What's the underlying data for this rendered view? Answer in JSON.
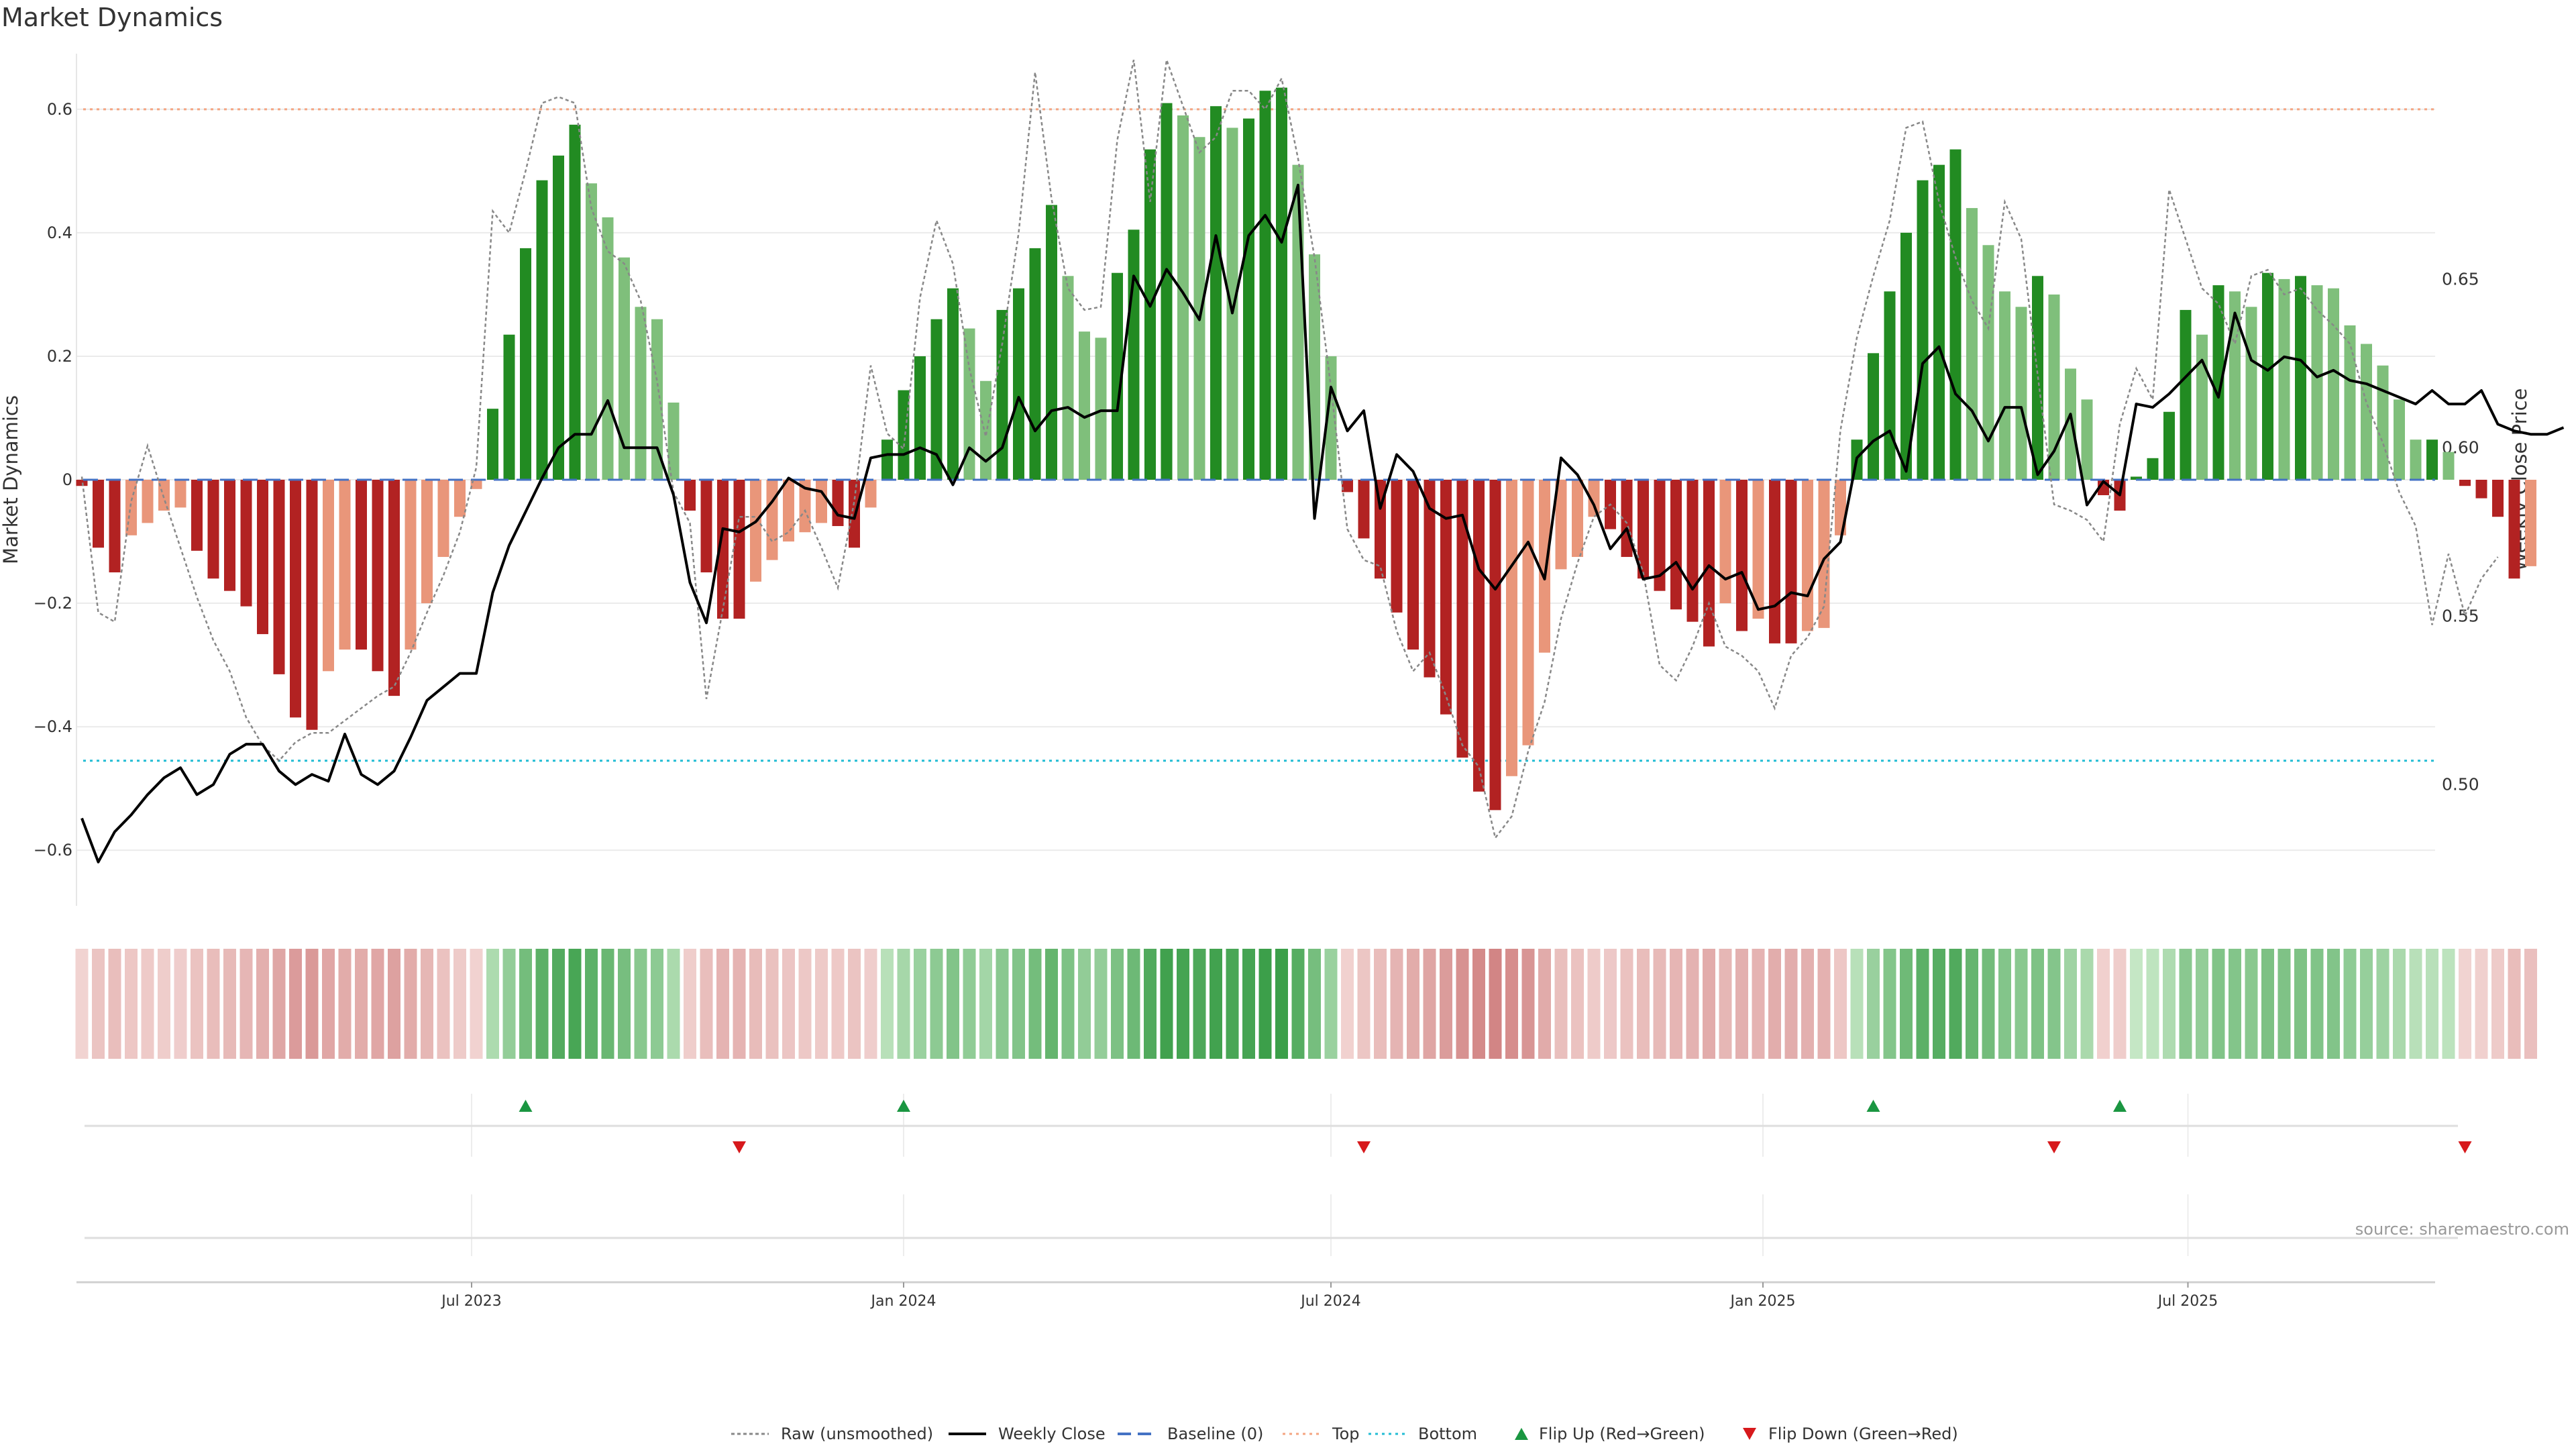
{
  "title": "Market Dynamics",
  "source": "source: sharemaestro.com",
  "colors": {
    "strong_green": "#228b22",
    "light_green": "#7fbf7b",
    "strong_red": "#b22222",
    "light_red": "#e9967a",
    "price": "#000000",
    "raw": "#888888",
    "baseline": "#4472c4",
    "top": "#f4a582",
    "bottom": "#22bcd4",
    "flip_up": "#1a9641",
    "flip_down": "#d7191c"
  },
  "chart_data": {
    "type": "bar",
    "title": "Market Dynamics",
    "ylabel_left": "Market Dynamics",
    "ylabel_right": "Weekly Close Price",
    "ylim_left": [
      -0.69,
      0.69
    ],
    "ylim_right": [
      0.464,
      0.717
    ],
    "yticks_left": [
      -0.6,
      -0.4,
      -0.2,
      0,
      0.2,
      0.4,
      0.6
    ],
    "yticks_left_labels": [
      "−0.6",
      "−0.4",
      "−0.2",
      "0",
      "0.2",
      "0.4",
      "0.6"
    ],
    "yticks_right": [
      0.5,
      0.55,
      0.6,
      0.65
    ],
    "yticks_right_labels": [
      "0.50",
      "0.55",
      "0.60",
      "0.65"
    ],
    "x_axis": {
      "start": "2023-01-16",
      "interval_days": 7,
      "ticks": [
        "2023-07-01",
        "2024-01-01",
        "2024-07-01",
        "2025-01-01",
        "2025-07-01"
      ],
      "tick_labels": [
        "Jul 2023",
        "Jan 2024",
        "Jul 2024",
        "Jan 2025",
        "Jul 2025"
      ]
    },
    "top_threshold": 0.6,
    "bottom_threshold": -0.455,
    "baseline": 0,
    "dynamics": [
      -0.01,
      -0.11,
      -0.15,
      -0.09,
      -0.07,
      -0.05,
      -0.045,
      -0.115,
      -0.16,
      -0.18,
      -0.205,
      -0.25,
      -0.315,
      -0.385,
      -0.405,
      -0.31,
      -0.275,
      -0.275,
      -0.31,
      -0.35,
      -0.275,
      -0.2,
      -0.125,
      -0.06,
      -0.015,
      0.115,
      0.235,
      0.375,
      0.485,
      0.525,
      0.575,
      0.48,
      0.425,
      0.36,
      0.28,
      0.26,
      0.125,
      -0.05,
      -0.15,
      -0.225,
      -0.225,
      -0.165,
      -0.13,
      -0.1,
      -0.085,
      -0.07,
      -0.075,
      -0.11,
      -0.045,
      0.065,
      0.145,
      0.2,
      0.26,
      0.31,
      0.245,
      0.16,
      0.275,
      0.31,
      0.375,
      0.445,
      0.33,
      0.24,
      0.23,
      0.335,
      0.405,
      0.535,
      0.61,
      0.59,
      0.555,
      0.605,
      0.57,
      0.585,
      0.63,
      0.635,
      0.51,
      0.365,
      0.2,
      -0.02,
      -0.095,
      -0.16,
      -0.215,
      -0.275,
      -0.32,
      -0.38,
      -0.45,
      -0.505,
      -0.535,
      -0.48,
      -0.43,
      -0.28,
      -0.145,
      -0.125,
      -0.06,
      -0.08,
      -0.125,
      -0.16,
      -0.18,
      -0.21,
      -0.23,
      -0.27,
      -0.2,
      -0.245,
      -0.225,
      -0.265,
      -0.265,
      -0.245,
      -0.24,
      -0.09,
      0.065,
      0.205,
      0.305,
      0.4,
      0.485,
      0.51,
      0.535,
      0.44,
      0.38,
      0.305,
      0.28,
      0.33,
      0.3,
      0.18,
      0.13,
      -0.025,
      -0.05,
      0.005,
      0.035,
      0.11,
      0.275,
      0.235,
      0.315,
      0.305,
      0.28,
      0.335,
      0.325,
      0.33,
      0.315,
      0.31,
      0.25,
      0.22,
      0.185,
      0.13,
      0.065,
      0.065,
      0.045,
      -0.01,
      -0.03,
      -0.06,
      -0.16,
      -0.14
    ],
    "raw": [
      0.005,
      -0.215,
      -0.23,
      -0.035,
      0.055,
      -0.03,
      -0.11,
      -0.19,
      -0.26,
      -0.31,
      -0.385,
      -0.43,
      -0.455,
      -0.425,
      -0.41,
      -0.41,
      -0.39,
      -0.37,
      -0.35,
      -0.335,
      -0.28,
      -0.215,
      -0.155,
      -0.085,
      0.02,
      0.435,
      0.4,
      0.5,
      0.61,
      0.62,
      0.61,
      0.44,
      0.37,
      0.35,
      0.29,
      0.16,
      -0.02,
      -0.07,
      -0.355,
      -0.21,
      -0.06,
      -0.06,
      -0.1,
      -0.085,
      -0.05,
      -0.11,
      -0.175,
      -0.035,
      0.185,
      0.075,
      0.05,
      0.295,
      0.42,
      0.35,
      0.18,
      0.07,
      0.22,
      0.4,
      0.66,
      0.455,
      0.31,
      0.275,
      0.28,
      0.55,
      0.68,
      0.45,
      0.68,
      0.605,
      0.53,
      0.555,
      0.63,
      0.63,
      0.6,
      0.65,
      0.52,
      0.36,
      0.15,
      -0.08,
      -0.13,
      -0.14,
      -0.245,
      -0.31,
      -0.28,
      -0.35,
      -0.43,
      -0.465,
      -0.58,
      -0.545,
      -0.44,
      -0.36,
      -0.225,
      -0.135,
      -0.06,
      -0.04,
      -0.07,
      -0.15,
      -0.3,
      -0.325,
      -0.27,
      -0.2,
      -0.27,
      -0.285,
      -0.31,
      -0.37,
      -0.285,
      -0.255,
      -0.205,
      0.08,
      0.23,
      0.33,
      0.42,
      0.57,
      0.58,
      0.45,
      0.36,
      0.29,
      0.245,
      0.45,
      0.39,
      0.17,
      -0.04,
      -0.05,
      -0.065,
      -0.1,
      0.09,
      0.18,
      0.13,
      0.47,
      0.39,
      0.31,
      0.285,
      0.22,
      0.33,
      0.34,
      0.3,
      0.31,
      0.275,
      0.25,
      0.22,
      0.125,
      0.06,
      -0.02,
      -0.075,
      -0.235,
      -0.12,
      -0.22,
      -0.16,
      -0.125
    ],
    "price": [
      0.49,
      0.477,
      0.486,
      0.491,
      0.497,
      0.502,
      0.505,
      0.497,
      0.5,
      0.509,
      0.512,
      0.512,
      0.504,
      0.5,
      0.503,
      0.501,
      0.515,
      0.503,
      0.5,
      0.504,
      0.514,
      0.525,
      0.529,
      0.533,
      0.533,
      0.557,
      0.571,
      0.581,
      0.591,
      0.6,
      0.604,
      0.604,
      0.614,
      0.6,
      0.6,
      0.6,
      0.586,
      0.56,
      0.548,
      0.576,
      0.575,
      0.578,
      0.584,
      0.591,
      0.588,
      0.587,
      0.58,
      0.579,
      0.597,
      0.598,
      0.598,
      0.6,
      0.598,
      0.589,
      0.6,
      0.596,
      0.6,
      0.615,
      0.605,
      0.611,
      0.612,
      0.609,
      0.611,
      0.611,
      0.651,
      0.642,
      0.653,
      0.646,
      0.638,
      0.663,
      0.64,
      0.663,
      0.669,
      0.661,
      0.678,
      0.579,
      0.618,
      0.605,
      0.611,
      0.582,
      0.598,
      0.593,
      0.582,
      0.579,
      0.58,
      0.564,
      0.558,
      0.565,
      0.572,
      0.561,
      0.597,
      0.592,
      0.583,
      0.57,
      0.576,
      0.561,
      0.562,
      0.566,
      0.558,
      0.565,
      0.561,
      0.563,
      0.552,
      0.553,
      0.557,
      0.556,
      0.567,
      0.572,
      0.597,
      0.602,
      0.605,
      0.593,
      0.625,
      0.63,
      0.616,
      0.611,
      0.602,
      0.612,
      0.612,
      0.592,
      0.599,
      0.61,
      0.583,
      0.59,
      0.586,
      0.613,
      0.612,
      0.616,
      0.621,
      0.626,
      0.615,
      0.64,
      0.626,
      0.623,
      0.627,
      0.626,
      0.621,
      0.623,
      0.62,
      0.619,
      0.617,
      0.615,
      0.613,
      0.617,
      0.613,
      0.613,
      0.617,
      0.607,
      0.605,
      0.604,
      0.604,
      0.606
    ],
    "flips": [
      {
        "date": "2023-07-24",
        "type": "up"
      },
      {
        "date": "2023-10-23",
        "type": "down"
      },
      {
        "date": "2024-01-01",
        "type": "up"
      },
      {
        "date": "2024-07-15",
        "type": "down"
      },
      {
        "date": "2025-02-17",
        "type": "up"
      },
      {
        "date": "2025-05-05",
        "type": "down"
      },
      {
        "date": "2025-06-02",
        "type": "up"
      },
      {
        "date": "2025-10-27",
        "type": "down"
      }
    ],
    "grid": true,
    "legend_position": "bottom",
    "legend": [
      {
        "label": "Raw (unsmoothed)",
        "kind": "raw"
      },
      {
        "label": "Weekly Close",
        "kind": "price"
      },
      {
        "label": "Baseline (0)",
        "kind": "baseline"
      },
      {
        "label": "Top",
        "kind": "top"
      },
      {
        "label": "Bottom",
        "kind": "bottom"
      },
      {
        "label": "Flip Up (Red→Green)",
        "kind": "flip_up"
      },
      {
        "label": "Flip Down (Green→Red)",
        "kind": "flip_down"
      }
    ]
  }
}
